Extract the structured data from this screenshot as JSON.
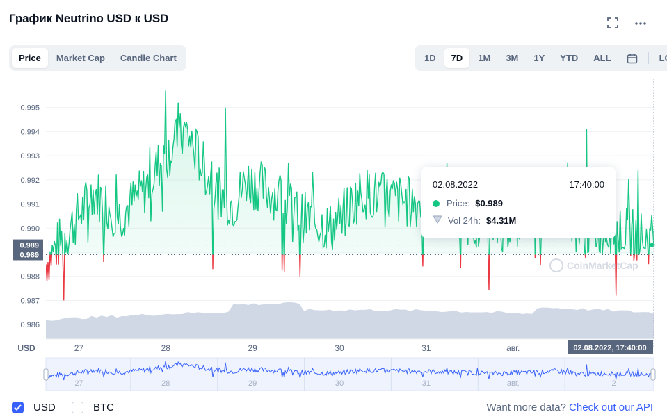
{
  "title": "График Neutrino USD к USD",
  "header_icons": [
    "fullscreen-icon",
    "more-icon"
  ],
  "tabs": [
    {
      "label": "Price",
      "active": true
    },
    {
      "label": "Market Cap",
      "active": false
    },
    {
      "label": "Candle Chart",
      "active": false
    }
  ],
  "ranges": [
    {
      "label": "1D",
      "active": false
    },
    {
      "label": "7D",
      "active": true
    },
    {
      "label": "1M",
      "active": false
    },
    {
      "label": "3M",
      "active": false
    },
    {
      "label": "1Y",
      "active": false
    },
    {
      "label": "YTD",
      "active": false
    },
    {
      "label": "ALL",
      "active": false
    }
  ],
  "log_label": "LOG",
  "colors": {
    "up": "#16c784",
    "down": "#ea3943",
    "volume": "#cfd6e4",
    "accent": "#3861fb",
    "baseline": "#58667e"
  },
  "tooltip": {
    "date": "02.08.2022",
    "time": "17:40:00",
    "price_label": "Price:",
    "price_value": "$0.989",
    "volume_label": "Vol 24h:",
    "volume_value": "$4.31M"
  },
  "chart_data": {
    "type": "line",
    "currency_label": "USD",
    "y_ticks": [
      "0.995",
      "0.994",
      "0.993",
      "0.992",
      "0.991",
      "0.990",
      "0.989",
      "0.988",
      "0.987",
      "0.986"
    ],
    "ylim": [
      0.9854,
      0.9962
    ],
    "baseline_value": 0.9889,
    "baseline_label": "0.989",
    "current_value": 0.9893,
    "current_label": "0.989",
    "x_ticks": [
      "27",
      "28",
      "29",
      "30",
      "31",
      "авг."
    ],
    "crosshair_label": "02.08.2022, 17:40:00",
    "navigator_ticks": [
      "27",
      "28",
      "29",
      "30",
      "31",
      "авг.",
      "2"
    ],
    "series": [
      {
        "name": "Price",
        "start": 0.9885,
        "points": 580,
        "approx_range": [
          0.9869,
          0.9957
        ]
      },
      {
        "name": "Vol 24h",
        "type": "area"
      }
    ],
    "watermark": "CoinMarketCap"
  },
  "footer": {
    "usd_label": "USD",
    "usd_checked": true,
    "btc_label": "BTC",
    "btc_checked": false,
    "api_text": "Want more data?",
    "api_link": "Check out our API"
  }
}
